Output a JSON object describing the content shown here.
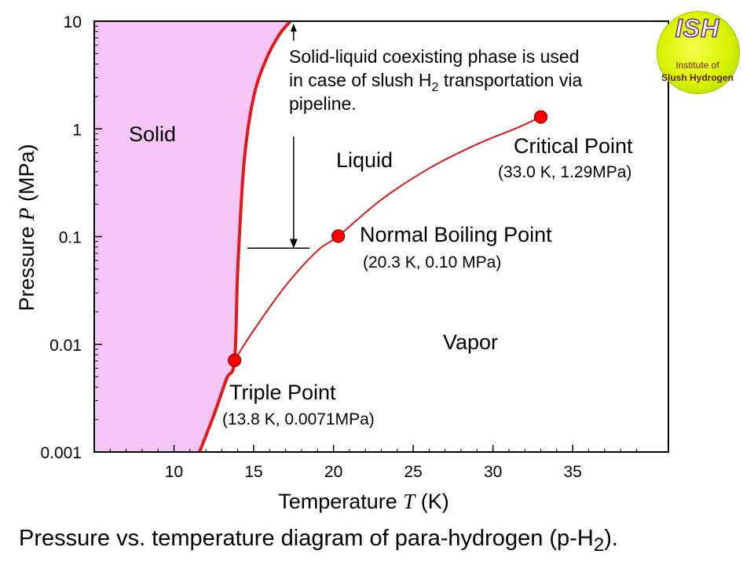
{
  "chart_data": {
    "type": "line",
    "xlabel": {
      "text": "Temperature ",
      "var": "T",
      "unit": " (K)"
    },
    "ylabel": {
      "text": "Pressure ",
      "var": "P",
      "unit": " (MPa)"
    },
    "x_ticks": [
      10,
      15,
      20,
      25,
      30,
      35
    ],
    "x_tick_labels": [
      "10",
      "15",
      "20",
      "25",
      "30",
      "35"
    ],
    "xlim": [
      5,
      41
    ],
    "y_scale": "log",
    "y_ticks": [
      0.001,
      0.01,
      0.1,
      1,
      10
    ],
    "y_tick_labels": [
      "0.001",
      "0.01",
      "0.1",
      "1",
      "10"
    ],
    "ylim": [
      0.001,
      10
    ],
    "series": [
      {
        "id": "melting-curve",
        "x": [
          11.6,
          12.5,
          13.3,
          13.8,
          14.0,
          14.4,
          15.0,
          15.8,
          16.6,
          17.3
        ],
        "y": [
          0.001,
          0.0022,
          0.0048,
          0.0071,
          0.05,
          0.5,
          2.0,
          4.5,
          7.5,
          10
        ]
      },
      {
        "id": "vapor-pressure-curve",
        "x": [
          13.8,
          15.0,
          17.0,
          19.0,
          20.3,
          23.0,
          26.0,
          29.0,
          31.5,
          33.0
        ],
        "y": [
          0.0071,
          0.0135,
          0.035,
          0.074,
          0.101,
          0.22,
          0.43,
          0.72,
          1.02,
          1.29
        ]
      }
    ],
    "solid_region": {
      "color": "#f5c6f5"
    },
    "curve_color": "#e0191b",
    "points": [
      {
        "id": "triple",
        "name": "Triple Point",
        "coords": "(13.8 K, 0.0071MPa)",
        "x": 13.8,
        "y": 0.0071
      },
      {
        "id": "boiling",
        "name": "Normal Boiling Point",
        "coords": "(20.3 K, 0.10 MPa)",
        "x": 20.3,
        "y": 0.101
      },
      {
        "id": "critical",
        "name": "Critical Point",
        "coords": "(33.0 K, 1.29MPa)",
        "x": 33.0,
        "y": 1.29
      }
    ],
    "regions": {
      "solid": "Solid",
      "liquid": "Liquid",
      "vapor": "Vapor"
    },
    "annotation": {
      "line1": "Solid-liquid coexisting phase is used",
      "line2_prefix": "in case of slush H",
      "line2_sub": "2",
      "line2_suffix": " transportation via",
      "line3": "pipeline."
    }
  },
  "caption": {
    "prefix": "Pressure vs. temperature diagram of para-hydrogen (p-H",
    "sub": "2",
    "suffix": ")."
  },
  "logo": {
    "abbr": "ISH",
    "line1": "Institute of",
    "line2": "Slush Hydrogen"
  }
}
